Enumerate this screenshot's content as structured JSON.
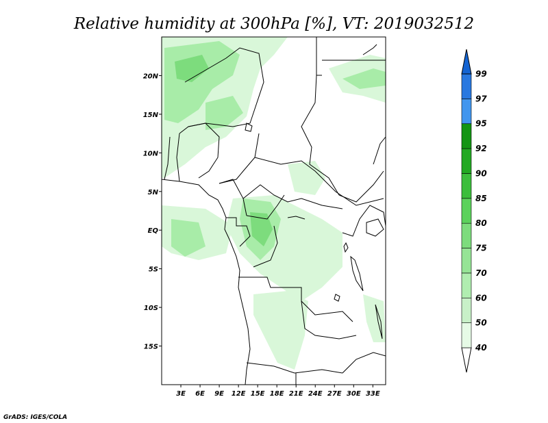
{
  "title": "Relative humidity at 300hPa [%], VT: 2019032512",
  "credit": "GrADS: IGES/COLA",
  "map": {
    "lon_range": [
      0,
      35
    ],
    "lat_range": [
      -20,
      25
    ],
    "lat_ticks": [
      {
        "value": 20,
        "label": "20N"
      },
      {
        "value": 15,
        "label": "15N"
      },
      {
        "value": 10,
        "label": "10N"
      },
      {
        "value": 5,
        "label": "5N"
      },
      {
        "value": 0,
        "label": "EQ"
      },
      {
        "value": -5,
        "label": "5S"
      },
      {
        "value": -10,
        "label": "10S"
      },
      {
        "value": -15,
        "label": "15S"
      }
    ],
    "lon_ticks": [
      {
        "value": 3,
        "label": "3E"
      },
      {
        "value": 6,
        "label": "6E"
      },
      {
        "value": 9,
        "label": "9E"
      },
      {
        "value": 12,
        "label": "12E"
      },
      {
        "value": 15,
        "label": "15E"
      },
      {
        "value": 18,
        "label": "18E"
      },
      {
        "value": 21,
        "label": "21E"
      },
      {
        "value": 24,
        "label": "24E"
      },
      {
        "value": 27,
        "label": "27E"
      },
      {
        "value": 30,
        "label": "30E"
      },
      {
        "value": 33,
        "label": "33E"
      }
    ]
  },
  "colorbar": {
    "levels": [
      "40",
      "50",
      "60",
      "70",
      "75",
      "80",
      "85",
      "90",
      "92",
      "95",
      "97",
      "99"
    ],
    "colors": [
      "#ffffff",
      "#e6fae6",
      "#c8f0c8",
      "#b0edb0",
      "#96e496",
      "#7ddc7d",
      "#5cd25c",
      "#3cbe3c",
      "#22a922",
      "#139513",
      "#4196ee",
      "#2878e0",
      "#1464d2"
    ]
  },
  "colors": {
    "humidity_light": "#d9f7d9",
    "humidity_medium": "#a8eca8",
    "humidity_strong": "#7ddc7d",
    "border": "#000000"
  }
}
